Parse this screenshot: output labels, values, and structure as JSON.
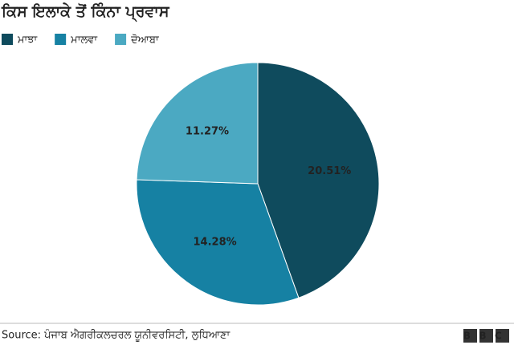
{
  "chart_data": {
    "type": "pie",
    "title": "ਕਿਸ ਇਲਾਕੇ ਤੋਂ ਕਿੰਨਾ ਪ੍ਰਵਾਸ",
    "categories": [
      "ਮਾਝਾ",
      "ਮਾਲਵਾ",
      "ਦੋਆਬਾ"
    ],
    "values": [
      20.51,
      14.28,
      11.27
    ],
    "value_labels": [
      "20.51%",
      "14.28%",
      "11.27%"
    ],
    "colors": [
      "#0f4b5d",
      "#1681a3",
      "#4ba9c2"
    ],
    "legend": "top-left",
    "source": "Source: ਪੰਜਾਬ ਐਗਰੀਕਲਚਰਲ ਯੂਨੀਵਰਸਿਟੀ, ਲੁਧਿਆਣਾ",
    "logo": "BBC"
  }
}
